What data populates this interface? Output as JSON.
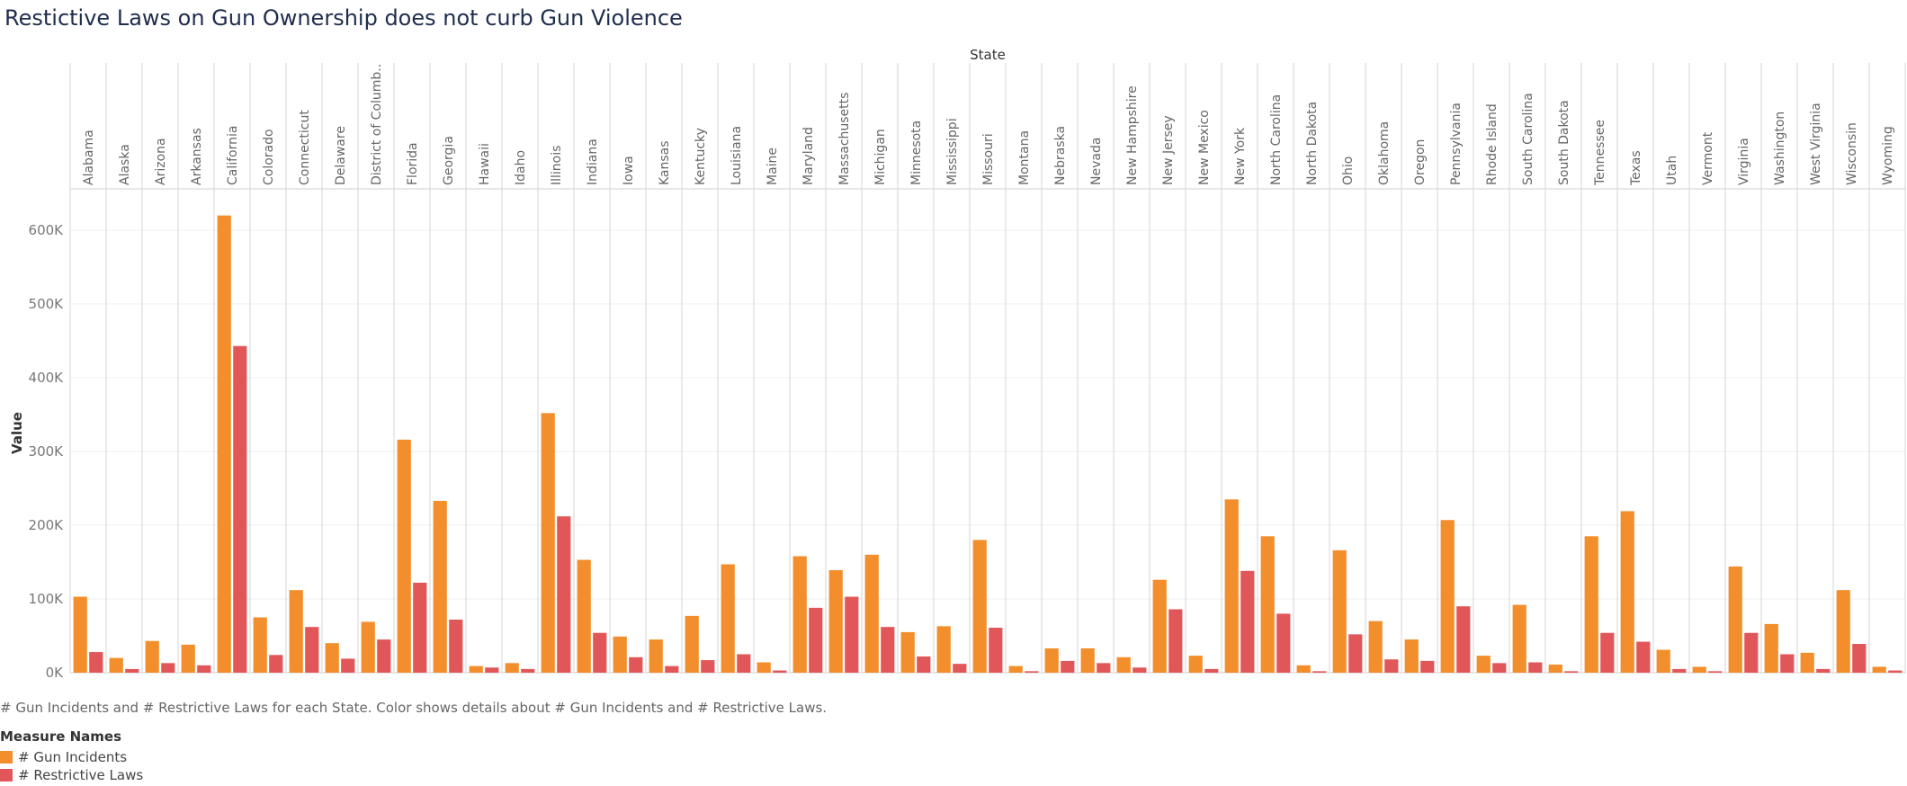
{
  "title": "Restictive Laws on Gun Ownership does not curb Gun Violence",
  "footer_note": "# Gun Incidents and # Restrictive Laws for each State.  Color shows details about # Gun Incidents and # Restrictive Laws.",
  "legend": {
    "title": "Measure Names",
    "items": [
      {
        "label": "# Gun Incidents",
        "color": "#f28e2b"
      },
      {
        "label": "# Restrictive Laws",
        "color": "#e15759"
      }
    ]
  },
  "chart_data": {
    "type": "bar",
    "column_header": "State",
    "ylabel": "Value",
    "ylim": [
      0,
      650000
    ],
    "yticks": [
      0,
      100000,
      200000,
      300000,
      400000,
      500000,
      600000
    ],
    "ytick_labels": [
      "0K",
      "100K",
      "200K",
      "300K",
      "400K",
      "500K",
      "600K"
    ],
    "grid": true,
    "legend_position": "bottom-left",
    "categories": [
      "Alabama",
      "Alaska",
      "Arizona",
      "Arkansas",
      "California",
      "Colorado",
      "Connecticut",
      "Delaware",
      "District of Columb..",
      "Florida",
      "Georgia",
      "Hawaii",
      "Idaho",
      "Illinois",
      "Indiana",
      "Iowa",
      "Kansas",
      "Kentucky",
      "Louisiana",
      "Maine",
      "Maryland",
      "Massachusetts",
      "Michigan",
      "Minnesota",
      "Mississippi",
      "Missouri",
      "Montana",
      "Nebraska",
      "Nevada",
      "New Hampshire",
      "New Jersey",
      "New Mexico",
      "New York",
      "North Carolina",
      "North Dakota",
      "Ohio",
      "Oklahoma",
      "Oregon",
      "Pennsylvania",
      "Rhode Island",
      "South Carolina",
      "South Dakota",
      "Tennessee",
      "Texas",
      "Utah",
      "Vermont",
      "Virginia",
      "Washington",
      "West Virginia",
      "Wisconsin",
      "Wyoming"
    ],
    "series": [
      {
        "name": "# Gun Incidents",
        "color": "#f28e2b",
        "values": [
          103000,
          20000,
          43000,
          38000,
          620000,
          75000,
          112000,
          40000,
          69000,
          316000,
          233000,
          9000,
          13000,
          352000,
          153000,
          49000,
          45000,
          77000,
          147000,
          14000,
          158000,
          139000,
          160000,
          55000,
          63000,
          180000,
          9000,
          33000,
          33000,
          21000,
          126000,
          23000,
          235000,
          185000,
          10000,
          166000,
          70000,
          45000,
          207000,
          23000,
          92000,
          11000,
          185000,
          219000,
          31000,
          8000,
          144000,
          66000,
          27000,
          112000,
          8000
        ]
      },
      {
        "name": "# Restrictive Laws",
        "color": "#e15759",
        "values": [
          28000,
          5000,
          13000,
          10000,
          443000,
          24000,
          62000,
          19000,
          45000,
          122000,
          72000,
          7000,
          5000,
          212000,
          54000,
          21000,
          9000,
          17000,
          25000,
          3000,
          88000,
          103000,
          62000,
          22000,
          12000,
          61000,
          2000,
          16000,
          13000,
          7000,
          86000,
          5000,
          138000,
          80000,
          2000,
          52000,
          18000,
          16000,
          90000,
          13000,
          14000,
          2000,
          54000,
          42000,
          5000,
          2000,
          54000,
          25000,
          5000,
          39000,
          3000
        ]
      }
    ]
  }
}
